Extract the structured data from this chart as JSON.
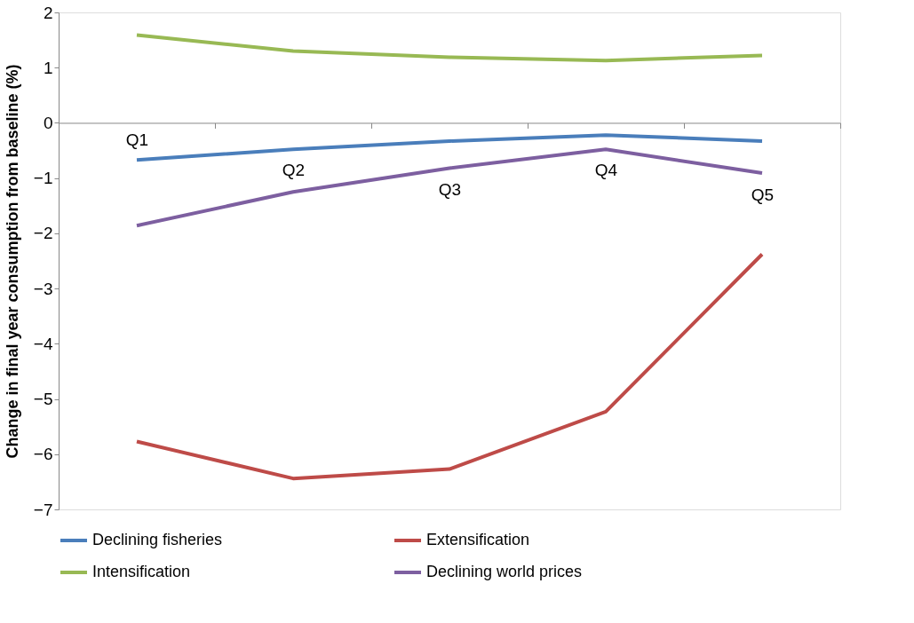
{
  "chart_data": {
    "type": "line",
    "ylabel": "Change in final year consumption from baseline (%)",
    "categories": [
      "Q1",
      "Q2",
      "Q3",
      "Q4",
      "Q5"
    ],
    "series": [
      {
        "name": "Declining  fisheries",
        "color": "#4a7ebb",
        "values": [
          -0.67,
          -0.48,
          -0.33,
          -0.22,
          -0.33
        ]
      },
      {
        "name": "Extensification",
        "color": "#be4b48",
        "values": [
          -5.77,
          -6.44,
          -6.27,
          -5.23,
          -2.38
        ]
      },
      {
        "name": "Intensification",
        "color": "#98b954",
        "values": [
          1.59,
          1.3,
          1.19,
          1.13,
          1.22
        ]
      },
      {
        "name": "Declining world  prices",
        "color": "#7d5fa0",
        "values": [
          -1.86,
          -1.25,
          -0.82,
          -0.48,
          -0.91
        ]
      }
    ],
    "ylim": [
      -7,
      2
    ],
    "yticks": [
      -7,
      -6,
      -5,
      -4,
      -3,
      -2,
      -1,
      0,
      1,
      2
    ],
    "grid": false,
    "legend": "bottom",
    "marker": "none",
    "line_style": "solid"
  }
}
